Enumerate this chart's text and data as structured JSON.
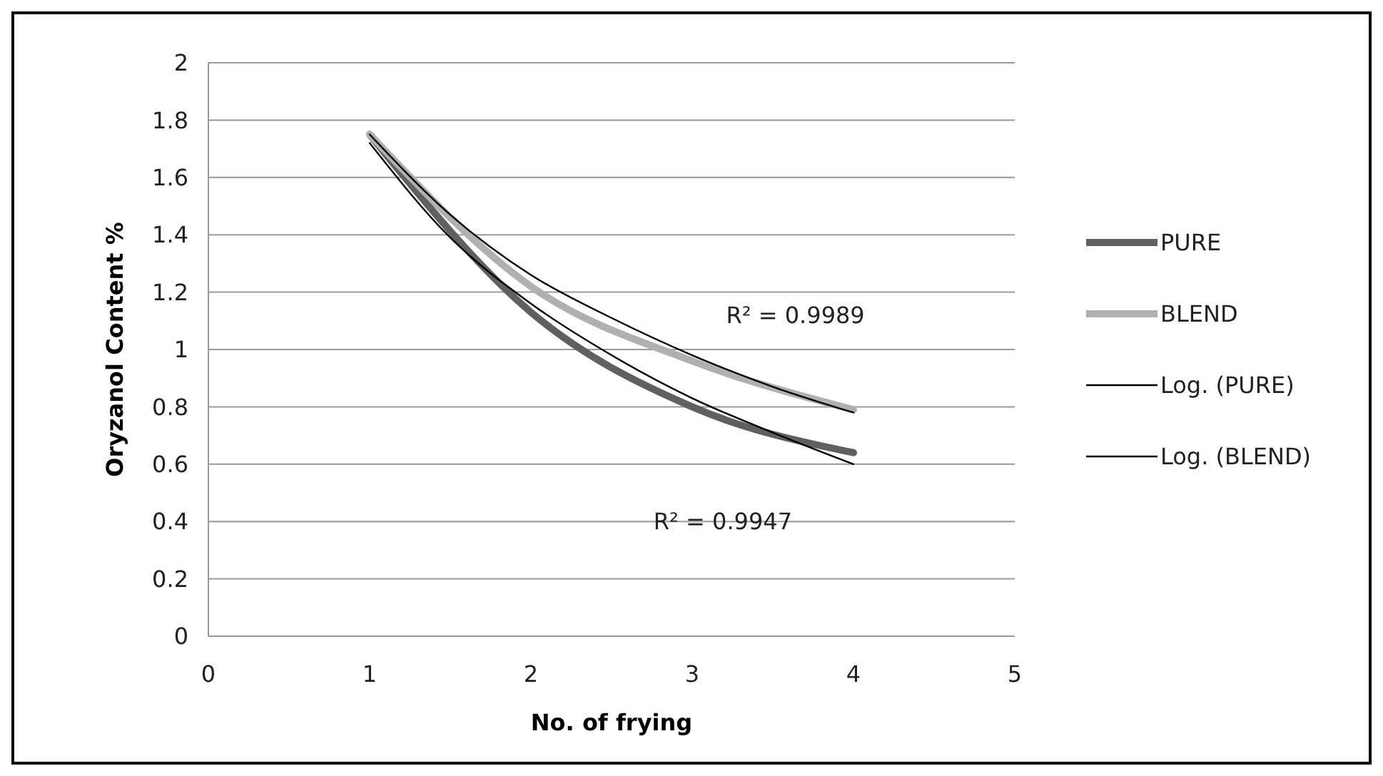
{
  "chart_data": {
    "type": "line",
    "xlabel": "No. of frying",
    "ylabel": "Oryzanol Content %",
    "xlim": [
      0,
      5
    ],
    "xticks": [
      0,
      1,
      2,
      3,
      4,
      5
    ],
    "ylim": [
      0,
      2
    ],
    "yticks": [
      0,
      0.2,
      0.4,
      0.6,
      0.8,
      1,
      1.2,
      1.4,
      1.6,
      1.8,
      2
    ],
    "grid": "y",
    "legend": "right",
    "marker": "none",
    "x": [
      1,
      2,
      3,
      4
    ],
    "series": [
      {
        "name": "PURE",
        "color": "#606060",
        "values": [
          1.75,
          1.13,
          0.8,
          0.64
        ]
      },
      {
        "name": "BLEND",
        "color": "#b0b0b0",
        "values": [
          1.75,
          1.22,
          0.96,
          0.79
        ]
      },
      {
        "name": "Log. (PURE)",
        "color": "#000000",
        "type": "line",
        "x": [
          1,
          1.5,
          2,
          2.5,
          3,
          3.5,
          4
        ],
        "values": [
          1.72,
          1.39,
          1.16,
          0.98,
          0.83,
          0.71,
          0.6
        ]
      },
      {
        "name": "Log. (BLEND)",
        "color": "#000000",
        "type": "line",
        "x": [
          1,
          1.5,
          2,
          2.5,
          3,
          3.5,
          4
        ],
        "values": [
          1.75,
          1.47,
          1.26,
          1.11,
          0.98,
          0.87,
          0.78
        ]
      }
    ],
    "annotations": [
      "R² = 0.9989",
      "R² = 0.9947"
    ]
  }
}
